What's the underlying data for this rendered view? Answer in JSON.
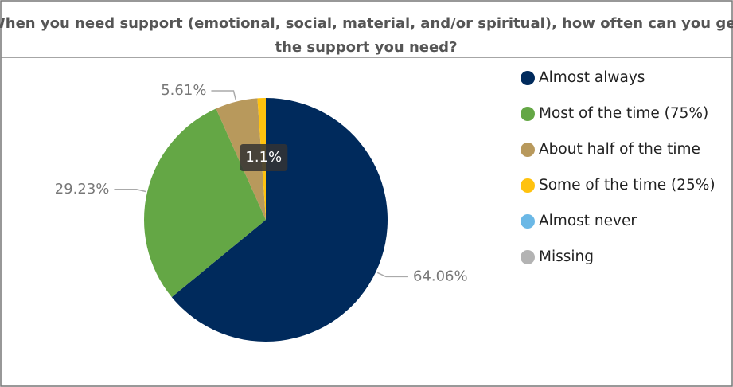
{
  "chart_data": {
    "type": "pie",
    "title": "When you need support (emotional, social, material, and/or spiritual), how often can you get the support you need?",
    "categories": [
      "Almost always",
      "Most of the time (75%)",
      "About half of the time",
      "Some of the time (25%)",
      "Almost never",
      "Missing"
    ],
    "values": [
      64.06,
      29.23,
      5.61,
      1.1,
      0,
      0
    ],
    "value_labels": [
      "64.06%",
      "29.23%",
      "5.61%",
      "1.1%",
      null,
      null
    ],
    "colors": [
      "#002a5c",
      "#64a745",
      "#b8995c",
      "#ffc20e",
      "#6bb8e6",
      "#b3b3b3"
    ],
    "legend": "right"
  }
}
